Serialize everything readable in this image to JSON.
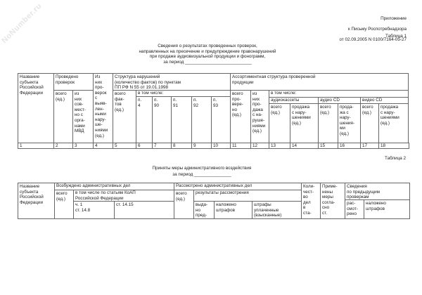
{
  "watermark": "NoNumber.ru",
  "appendix": {
    "line1": "Приложение",
    "line2": "к Письму Роспотребнадзора",
    "line3": "от 02.09.2005 N 0100/7164-05-27"
  },
  "table1": {
    "label": "Таблица 1",
    "title": "Сведения о результатах проведенных проверок,\nнаправленных на пресечение и предупреждение правонарушений\nпри продаже аудиовизуальной продукции и фонограмм,\nза период ___________________________",
    "h_name": "Название\nсубъекта\nРоссийской\nФедерации",
    "h_conducted": "Проведено\nпроверок",
    "h_total": "всего\n(ед.)",
    "h_joint": "из\nних\nсов-\nмест-\nно с\nорга-\nнами\nМВД",
    "h_found": "Из\nних\nпро-\nверок\nс\nвыяв-\nлен-\nными\nнару-\nше-\nниями\n(ед.)",
    "h_structure": "Структура нарушений\n(количество фактов) по пунктам\nПП РФ N 55 от 19.01.1998",
    "h_facts": "всего\nфак-\nтов\n(ед.)",
    "h_incl": "в том числе:",
    "points": [
      "п.\n4",
      "п.\n90",
      "п.\n91",
      "п.\n92",
      "п.\n93"
    ],
    "h_assort": "Ассортиментная структура проверенной\nпродукции",
    "h_checked": "всего\nпро-\nвере-\nно\n(ед.)",
    "h_sold": "из\nних\nпро-\nдажа\nс на-\nруше-\nниями\n(ед.)",
    "h_incl2": "в том числе:",
    "media": [
      "аудиокассеты",
      "аудио CD",
      "видео CD"
    ],
    "sub": [
      "всего\n(ед.)",
      "продажа\nс нару-\nшениями\n(ед.)",
      "всего\n(ед.)",
      "прода-\nжа с\nнару-\nшения-\nми\n(ед.)",
      "всего\n(ед.)",
      "продажа\nс нару-\nшениями\n(ед.)"
    ],
    "numbers": [
      "1",
      "2",
      "3",
      "4",
      "5",
      "6",
      "7",
      "8",
      "9",
      "10",
      "11",
      "12",
      "13",
      "14",
      "15",
      "16",
      "17",
      "18"
    ]
  },
  "table2": {
    "label": "Таблица 2",
    "title": "Приняты меры административного воздействия",
    "period": "за период _______________",
    "h_name": "Название\nсубъекта\nРоссийской\nФедерации",
    "h_initiated": "Возбуждено административных дел",
    "h_total": "всего\n(ед.)",
    "h_articles": "в том числе по статьям КоАП\nРоссийской Федерации",
    "h_148": "ч. 1\nст. 14.8",
    "h_1415": "ст. 14.15",
    "h_reviewed": "Рассмотрено административных дел",
    "h_total2": "всего\n(ед.)",
    "h_results": "результаты рассмотрения",
    "h_warn": "выда-\nно\nпред-",
    "h_fines": "наложено\nштрафов",
    "h_paid": "штрафы\nуплаченные\n(взысканные)",
    "h_count": "Коли-\nчест-\nво\nдел\nв\nста-",
    "h_measures": "Приме-\nнены\nмеры\nсогла-\nсно\nст.",
    "h_prev": "Сведения\nпо предыдущим\nпроверкам",
    "h_prev_rev": "рас-\nсмот-\nрено",
    "h_prev_fines": "наложено\nштрафов"
  }
}
